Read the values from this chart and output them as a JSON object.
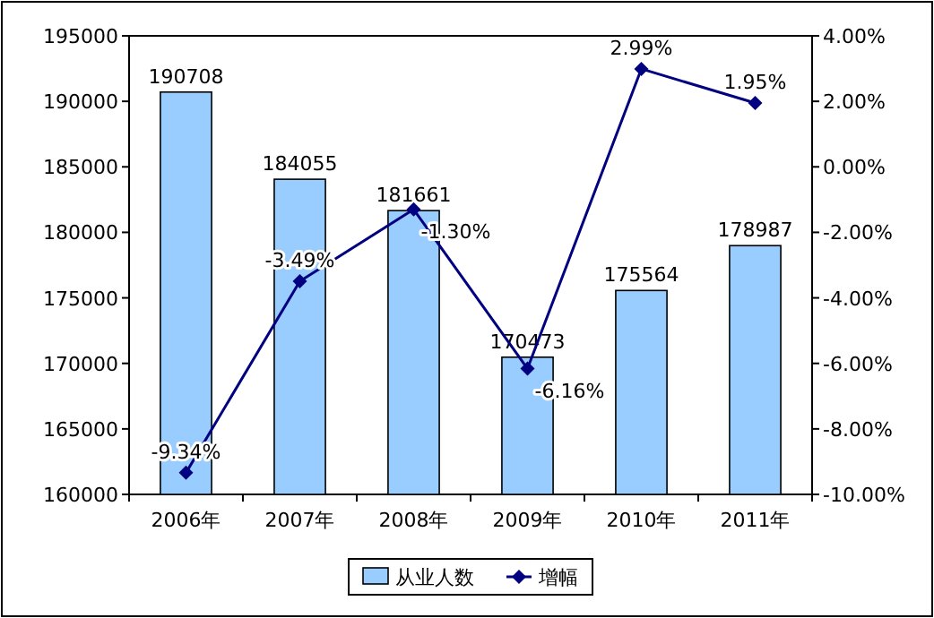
{
  "chart_data": {
    "type": "bar",
    "categories": [
      "2006年",
      "2007年",
      "2008年",
      "2009年",
      "2010年",
      "2011年"
    ],
    "series": [
      {
        "name": "从业人数",
        "color": "#99ccff",
        "values": [
          190708,
          184055,
          181661,
          170473,
          175564,
          178987
        ],
        "value_labels": [
          "190708",
          "184055",
          "181661",
          "170473",
          "175564",
          "178987"
        ]
      },
      {
        "name": "增幅",
        "type": "line",
        "axis": "y2",
        "color": "#000080",
        "marker": "diamond",
        "values": [
          -9.34,
          -3.49,
          -1.3,
          -6.16,
          2.99,
          1.95
        ],
        "value_labels": [
          "-9.34%",
          "-3.49%",
          "-1.30%",
          "-6.16%",
          "2.99%",
          "1.95%"
        ]
      }
    ],
    "ylim": [
      160000,
      195000
    ],
    "yticks": [
      160000,
      165000,
      170000,
      175000,
      180000,
      185000,
      190000,
      195000
    ],
    "y2lim": [
      -10,
      4
    ],
    "y2ticks": [
      {
        "value": -10,
        "label": "-10.00%"
      },
      {
        "value": -8,
        "label": "-8.00%"
      },
      {
        "value": -6,
        "label": "-6.00%"
      },
      {
        "value": -4,
        "label": "-4.00%"
      },
      {
        "value": -2,
        "label": "-2.00%"
      },
      {
        "value": 0,
        "label": "0.00%"
      },
      {
        "value": 2,
        "label": "2.00%"
      },
      {
        "value": 4,
        "label": "4.00%"
      }
    ],
    "legend": "bottom"
  }
}
